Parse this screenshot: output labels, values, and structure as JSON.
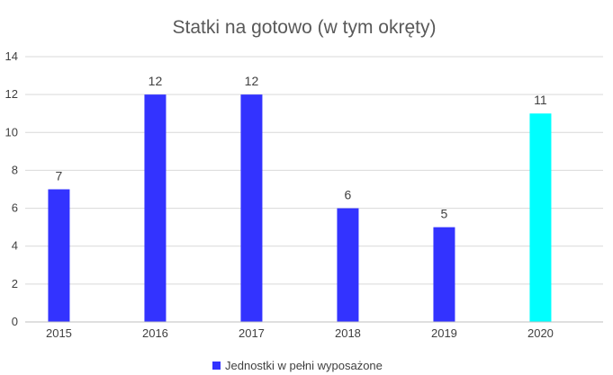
{
  "chart_data": {
    "type": "bar",
    "title": "Statki na gotowo (w tym okręty)",
    "xlabel": "",
    "ylabel": "",
    "categories": [
      "2015",
      "2016",
      "2017",
      "2018",
      "2019",
      "2020"
    ],
    "series": [
      {
        "name": "Jednostki w pełni wyposażone",
        "values": [
          7,
          12,
          12,
          6,
          5,
          11
        ],
        "color": "#3333ff",
        "point_colors": [
          "#3333ff",
          "#3333ff",
          "#3333ff",
          "#3333ff",
          "#3333ff",
          "#00ffff"
        ]
      }
    ],
    "ylim": [
      0,
      14
    ],
    "yticks": [
      0,
      2,
      4,
      6,
      8,
      10,
      12,
      14
    ],
    "grid": true,
    "legend": "bottom",
    "data_labels": true
  }
}
